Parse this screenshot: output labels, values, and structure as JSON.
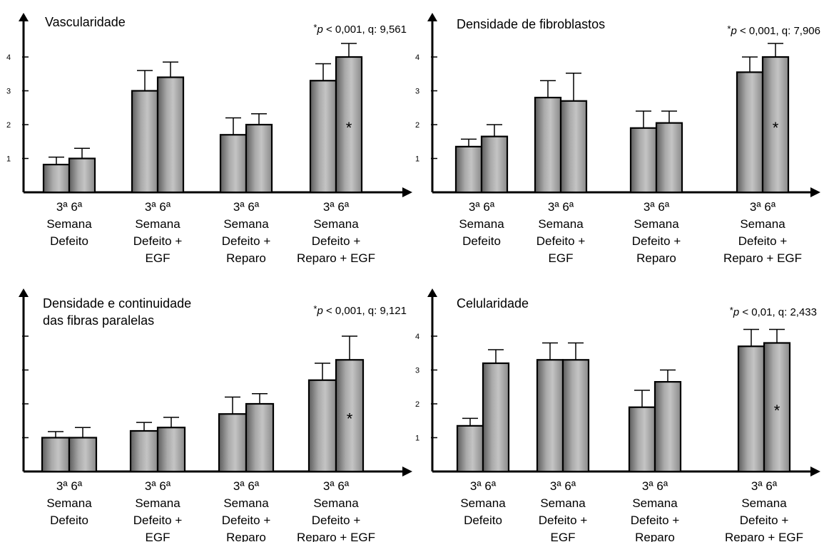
{
  "chart_data": [
    {
      "type": "bar",
      "title": "Vascularidade",
      "annotation": {
        "star": "*",
        "p_label": "p",
        "p_rest": " < 0,001, q: 9,561"
      },
      "ylim": [
        0,
        4.6
      ],
      "yticks": [
        "1",
        "2",
        "3",
        "4"
      ],
      "x_week_labels": "3ª 6ª",
      "categories": [
        [
          "Semana",
          "Defeito"
        ],
        [
          "Semana",
          "Defeito +",
          "EGF"
        ],
        [
          "Semana",
          "Defeito +",
          "Reparo"
        ],
        [
          "Semana",
          "Defeito +",
          "Reparo + EGF"
        ]
      ],
      "series": [
        {
          "values": [
            0.82,
            3.0,
            1.7,
            3.3
          ],
          "errors": [
            0.22,
            0.6,
            0.5,
            0.5
          ]
        },
        {
          "values": [
            1.0,
            3.4,
            2.0,
            4.0
          ],
          "errors": [
            0.3,
            0.45,
            0.32,
            0.4
          ]
        }
      ],
      "significance_marker": {
        "group": 3,
        "series": 1,
        "text": "*"
      }
    },
    {
      "type": "bar",
      "title": "Densidade de fibroblastos",
      "annotation": {
        "star": "*",
        "p_label": "p",
        "p_rest": " < 0,001, q: 7,906"
      },
      "ylim": [
        0,
        4.6
      ],
      "yticks": [
        "1",
        "2",
        "3",
        "4"
      ],
      "x_week_labels": "3ª 6ª",
      "categories": [
        [
          "Semana",
          "Defeito"
        ],
        [
          "Semana",
          "Defeito +",
          "EGF"
        ],
        [
          "Semana",
          "Defeito +",
          "Reparo"
        ],
        [
          "Semana",
          "Defeito +",
          "Reparo + EGF"
        ]
      ],
      "series": [
        {
          "values": [
            1.35,
            2.8,
            1.9,
            3.55
          ],
          "errors": [
            0.22,
            0.5,
            0.5,
            0.45
          ]
        },
        {
          "values": [
            1.65,
            2.7,
            2.05,
            4.0
          ],
          "errors": [
            0.35,
            0.82,
            0.35,
            0.4
          ]
        }
      ],
      "significance_marker": {
        "group": 3,
        "series": 1,
        "text": "*"
      }
    },
    {
      "type": "bar",
      "title": "Densidade e continuidade das fibras paralelas",
      "title_lines": [
        "Densidade e continuidade",
        "das fibras paralelas"
      ],
      "annotation": {
        "star": "*",
        "p_label": "p",
        "p_rest": " < 0,001, q: 9,121"
      },
      "ylim": [
        0,
        4.6
      ],
      "yticks": [
        "",
        "",
        "",
        ""
      ],
      "x_week_labels": "3ª 6ª",
      "categories": [
        [
          "Semana",
          "Defeito"
        ],
        [
          "Semana",
          "Defeito +",
          "EGF"
        ],
        [
          "Semana",
          "Defeito +",
          "Reparo"
        ],
        [
          "Semana",
          "Defeito +",
          "Reparo + EGF"
        ]
      ],
      "series": [
        {
          "values": [
            1.0,
            1.2,
            1.7,
            2.7
          ],
          "errors": [
            0.18,
            0.25,
            0.5,
            0.5
          ]
        },
        {
          "values": [
            1.0,
            1.3,
            2.0,
            3.3
          ],
          "errors": [
            0.3,
            0.3,
            0.3,
            0.7
          ]
        }
      ],
      "significance_marker": {
        "group": 3,
        "series": 1,
        "text": "*"
      }
    },
    {
      "type": "bar",
      "title": "Celularidade",
      "annotation": {
        "star": "*",
        "p_label": "p",
        "p_rest": " < 0,01, q: 2,433"
      },
      "ylim": [
        0,
        4.6
      ],
      "yticks": [
        "1",
        "2",
        "3",
        "4"
      ],
      "x_week_labels": "3ª 6ª",
      "categories": [
        [
          "Semana",
          "Defeito"
        ],
        [
          "Semana",
          "Defeito +",
          "EGF"
        ],
        [
          "Semana",
          "Defeito +",
          "Reparo"
        ],
        [
          "Semana",
          "Defeito +",
          "Reparo + EGF"
        ]
      ],
      "series": [
        {
          "values": [
            1.35,
            3.3,
            1.9,
            3.7
          ],
          "errors": [
            0.22,
            0.5,
            0.5,
            0.5
          ]
        },
        {
          "values": [
            3.2,
            3.3,
            2.65,
            3.8
          ],
          "errors": [
            0.4,
            0.5,
            0.35,
            0.4
          ]
        }
      ],
      "significance_marker": {
        "group": 3,
        "series": 1,
        "text": "*"
      }
    }
  ]
}
